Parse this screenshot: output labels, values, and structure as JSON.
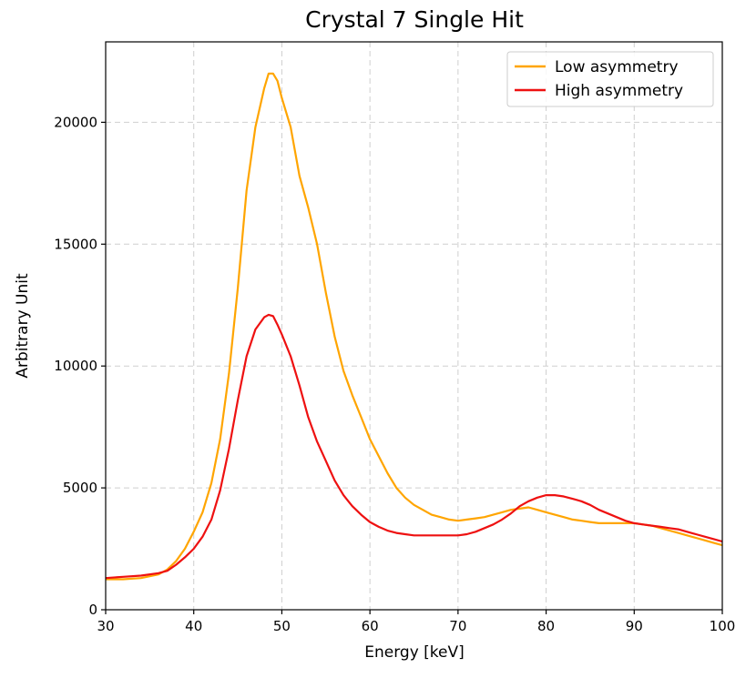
{
  "chart_data": {
    "type": "line",
    "title": "Crystal 7 Single Hit",
    "xlabel": "Energy [keV]",
    "ylabel": "Arbitrary Unit",
    "xlim": [
      30,
      100
    ],
    "ylim": [
      0,
      23300
    ],
    "xticks": [
      30,
      40,
      50,
      60,
      70,
      80,
      90,
      100
    ],
    "yticks": [
      0,
      5000,
      10000,
      15000,
      20000
    ],
    "grid": true,
    "legend_position": "top-right",
    "series": [
      {
        "name": "Low asymmetry",
        "color": "#ffa500",
        "x": [
          30,
          32,
          34,
          36,
          37,
          38,
          39,
          40,
          41,
          42,
          43,
          44,
          45,
          46,
          47,
          48,
          48.5,
          49,
          49.5,
          50,
          51,
          52,
          53,
          54,
          55,
          56,
          57,
          58,
          59,
          60,
          61,
          62,
          63,
          64,
          65,
          66,
          67,
          68,
          69,
          70,
          71,
          72,
          73,
          74,
          75,
          76,
          77,
          78,
          79,
          80,
          81,
          82,
          83,
          84,
          85,
          86,
          87,
          88,
          89,
          90,
          91,
          92,
          93,
          94,
          95,
          96,
          97,
          98,
          99,
          100
        ],
        "y": [
          1250,
          1250,
          1300,
          1450,
          1650,
          2000,
          2500,
          3200,
          4000,
          5200,
          7000,
          9700,
          13200,
          17200,
          19800,
          21400,
          22000,
          22000,
          21700,
          21000,
          19800,
          17800,
          16500,
          15000,
          13000,
          11200,
          9800,
          8800,
          7900,
          7000,
          6300,
          5600,
          5000,
          4600,
          4300,
          4100,
          3900,
          3800,
          3700,
          3650,
          3700,
          3750,
          3800,
          3900,
          4000,
          4100,
          4150,
          4200,
          4100,
          4000,
          3900,
          3800,
          3700,
          3650,
          3600,
          3550,
          3550,
          3550,
          3550,
          3550,
          3500,
          3450,
          3350,
          3250,
          3150,
          3050,
          2950,
          2850,
          2750,
          2650
        ]
      },
      {
        "name": "High asymmetry",
        "color": "#ee1111",
        "x": [
          30,
          32,
          34,
          36,
          37,
          38,
          39,
          40,
          41,
          42,
          43,
          44,
          45,
          46,
          47,
          48,
          48.5,
          49,
          49.5,
          50,
          51,
          52,
          53,
          54,
          55,
          56,
          57,
          58,
          59,
          60,
          61,
          62,
          63,
          64,
          65,
          66,
          67,
          68,
          69,
          70,
          71,
          72,
          73,
          74,
          75,
          76,
          77,
          78,
          79,
          80,
          81,
          82,
          83,
          84,
          85,
          86,
          87,
          88,
          89,
          90,
          91,
          92,
          93,
          94,
          95,
          96,
          97,
          98,
          99,
          100
        ],
        "y": [
          1300,
          1350,
          1400,
          1500,
          1600,
          1850,
          2150,
          2500,
          3000,
          3700,
          4900,
          6600,
          8600,
          10400,
          11500,
          12000,
          12100,
          12050,
          11700,
          11300,
          10400,
          9200,
          7900,
          6900,
          6100,
          5300,
          4700,
          4250,
          3900,
          3600,
          3400,
          3250,
          3150,
          3100,
          3050,
          3050,
          3050,
          3050,
          3050,
          3050,
          3100,
          3200,
          3350,
          3500,
          3700,
          3950,
          4250,
          4450,
          4600,
          4700,
          4700,
          4650,
          4550,
          4450,
          4300,
          4100,
          3950,
          3800,
          3650,
          3550,
          3500,
          3450,
          3400,
          3350,
          3300,
          3200,
          3100,
          3000,
          2900,
          2800
        ]
      }
    ]
  }
}
